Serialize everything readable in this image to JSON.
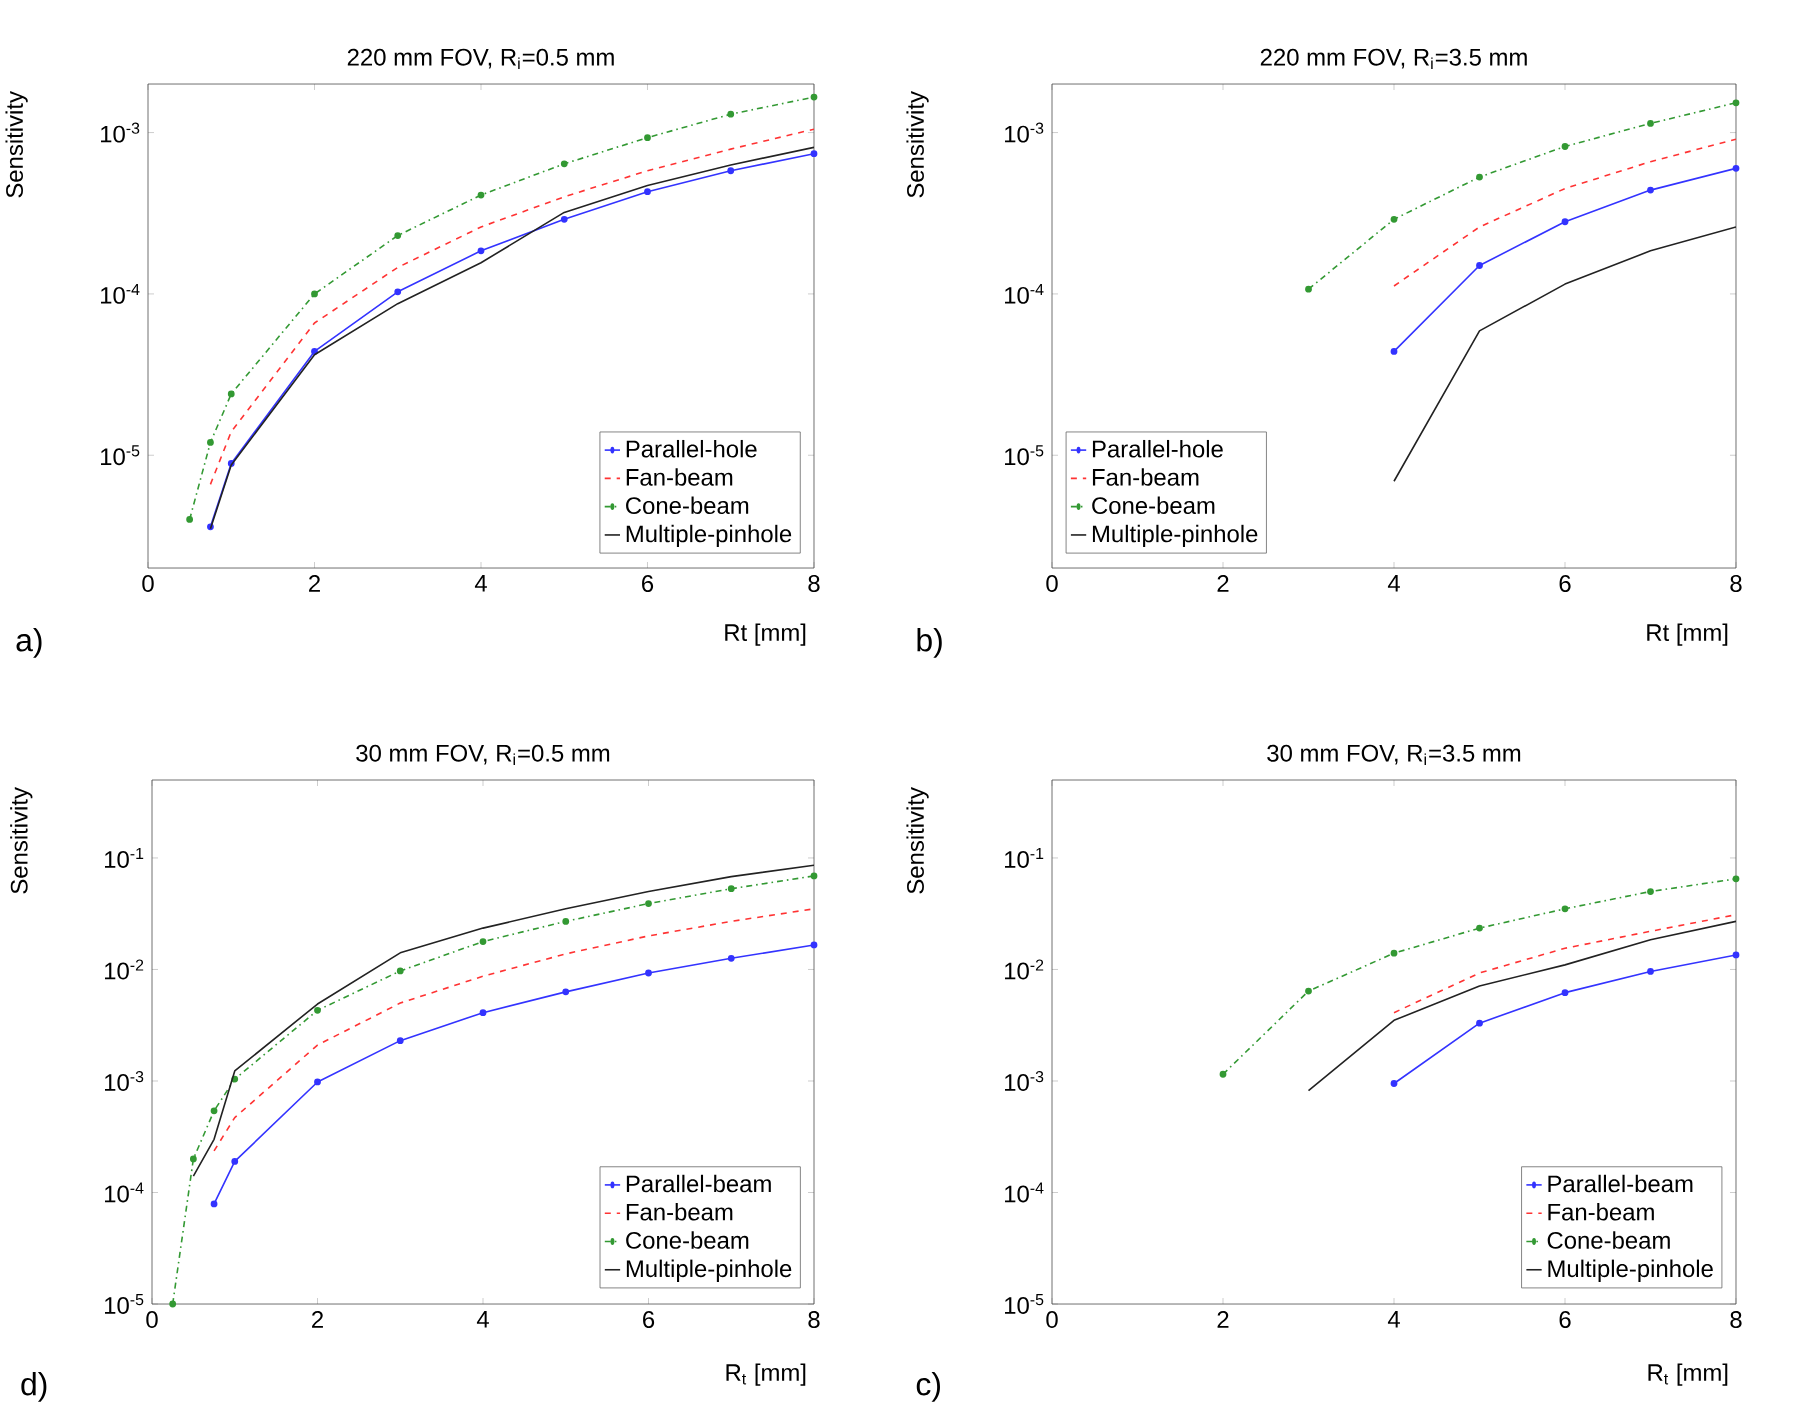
{
  "chart_data": [
    {
      "type": "line",
      "title": "220 mm FOV, R$_{i}$=0.5 mm",
      "xlabel": "Rt [mm]",
      "ylabel": "Sensitivity",
      "log": "y",
      "legend": "bottom right",
      "annotations": [
        "a)"
      ],
      "xlim": [
        0,
        8
      ],
      "xticks": [
        0,
        2,
        4,
        6,
        8
      ],
      "ylim": [
        2e-06,
        0.002
      ],
      "yticks": [
        {
          "value": 1e-05,
          "label": "10$^{-5}$"
        },
        {
          "value": 0.0001,
          "label": "10$^{-4}$"
        },
        {
          "value": 0.001,
          "label": "10$^{-3}$"
        }
      ],
      "series": [
        {
          "name": "Parallel-hole",
          "color": "#3333ff",
          "marker": "circle",
          "line_style": "solid",
          "x": [
            0.75,
            1,
            2,
            3,
            4,
            5,
            6,
            7,
            8
          ],
          "values": [
            3.6e-06,
            8.9e-06,
            4.4e-05,
            0.000103,
            0.000185,
            0.00029,
            0.00043,
            0.00058,
            0.00074
          ]
        },
        {
          "name": "Fan-beam",
          "color": "#ff3333",
          "marker": "none",
          "line_style": "dashed",
          "x": [
            0.75,
            1,
            2,
            3,
            4,
            5,
            6,
            7,
            8
          ],
          "values": [
            6.6e-06,
            1.4e-05,
            6.6e-05,
            0.000146,
            0.00026,
            0.0004,
            0.00058,
            0.00079,
            0.00105
          ]
        },
        {
          "name": "Cone-beam",
          "color": "#339933",
          "marker": "circle",
          "line_style": "dashdot",
          "x": [
            0.5,
            0.75,
            1,
            2,
            3,
            4,
            5,
            6,
            7,
            8
          ],
          "values": [
            4e-06,
            1.2e-05,
            2.4e-05,
            0.0001,
            0.00023,
            0.00041,
            0.00064,
            0.00093,
            0.0013,
            0.00166
          ]
        },
        {
          "name": "Multiple-pinhole",
          "color": "#222222",
          "marker": "none",
          "line_style": "solid",
          "x": [
            0.75,
            1,
            2,
            3,
            4,
            5,
            6,
            7,
            8
          ],
          "values": [
            3.5e-06,
            8.7e-06,
            4.2e-05,
            8.7e-05,
            0.000156,
            0.00032,
            0.00047,
            0.00063,
            0.00081
          ]
        }
      ]
    },
    {
      "type": "line",
      "title": "220 mm FOV, R$_{i}$=3.5 mm",
      "xlabel": "Rt [mm]",
      "ylabel": "Sensitivity",
      "log": "y",
      "legend": "bottom left",
      "annotations": [
        "b)"
      ],
      "xlim": [
        0,
        8
      ],
      "xticks": [
        0,
        2,
        4,
        6,
        8
      ],
      "ylim": [
        2e-06,
        0.002
      ],
      "yticks": [
        {
          "value": 1e-05,
          "label": "10$^{-5}$"
        },
        {
          "value": 0.0001,
          "label": "10$^{-4}$"
        },
        {
          "value": 0.001,
          "label": "10$^{-3}$"
        }
      ],
      "series": [
        {
          "name": "Parallel-hole",
          "color": "#3333ff",
          "marker": "circle",
          "line_style": "solid",
          "x": [
            4,
            5,
            6,
            7,
            8
          ],
          "values": [
            4.4e-05,
            0.00015,
            0.00028,
            0.00044,
            0.0006
          ]
        },
        {
          "name": "Fan-beam",
          "color": "#ff3333",
          "marker": "none",
          "line_style": "dashed",
          "x": [
            4,
            5,
            6,
            7,
            8
          ],
          "values": [
            0.000112,
            0.00026,
            0.00045,
            0.00066,
            0.00091
          ]
        },
        {
          "name": "Cone-beam",
          "color": "#339933",
          "marker": "circle",
          "line_style": "dashdot",
          "x": [
            3,
            4,
            5,
            6,
            7,
            8
          ],
          "values": [
            0.000107,
            0.00029,
            0.00053,
            0.00082,
            0.00114,
            0.00153
          ]
        },
        {
          "name": "Multiple-pinhole",
          "color": "#222222",
          "marker": "none",
          "line_style": "solid",
          "x": [
            4,
            5,
            6,
            7,
            8
          ],
          "values": [
            6.9e-06,
            5.9e-05,
            0.000115,
            0.000185,
            0.00026
          ]
        }
      ]
    },
    {
      "type": "line",
      "title": "30 mm FOV, R$_{i}$=0.5 mm",
      "xlabel": "R$_{t}$ [mm]",
      "ylabel": "Sensitivity",
      "log": "y",
      "legend": "bottom right",
      "annotations": [
        "d)"
      ],
      "xlim": [
        0,
        8
      ],
      "xticks": [
        0,
        2,
        4,
        6,
        8
      ],
      "ylim": [
        1e-05,
        0.5
      ],
      "yticks": [
        {
          "value": 1e-05,
          "label": "10$^{-5}$"
        },
        {
          "value": 0.0001,
          "label": "10$^{-4}$"
        },
        {
          "value": 0.001,
          "label": "10$^{-3}$"
        },
        {
          "value": 0.01,
          "label": "10$^{-2}$"
        },
        {
          "value": 0.1,
          "label": "10$^{-1}$"
        }
      ],
      "series": [
        {
          "name": "Parallel-beam",
          "color": "#3333ff",
          "marker": "circle",
          "line_style": "solid",
          "x": [
            0.75,
            1,
            2,
            3,
            4,
            5,
            6,
            7,
            8
          ],
          "values": [
            7.9e-05,
            0.00019,
            0.00098,
            0.0023,
            0.0041,
            0.0063,
            0.0093,
            0.0126,
            0.0166
          ]
        },
        {
          "name": "Fan-beam",
          "color": "#ff3333",
          "marker": "none",
          "line_style": "dashed",
          "x": [
            0.75,
            1,
            2,
            3,
            4,
            5,
            6,
            7,
            8
          ],
          "values": [
            0.000236,
            0.00047,
            0.0021,
            0.005,
            0.0087,
            0.0138,
            0.02,
            0.027,
            0.035
          ]
        },
        {
          "name": "Cone-beam",
          "color": "#339933",
          "marker": "circle",
          "line_style": "dashdot",
          "x": [
            0.25,
            0.5,
            0.75,
            1,
            2,
            3,
            4,
            5,
            6,
            7,
            8
          ],
          "values": [
            1e-05,
            0.0002,
            0.00054,
            0.00104,
            0.0043,
            0.0097,
            0.0178,
            0.027,
            0.039,
            0.053,
            0.069
          ]
        },
        {
          "name": "Multiple-pinhole",
          "color": "#222222",
          "marker": "none",
          "line_style": "solid",
          "x": [
            0.5,
            0.75,
            1,
            2,
            3,
            4,
            5,
            6,
            7,
            8
          ],
          "values": [
            0.00014,
            0.0003,
            0.00123,
            0.0049,
            0.0141,
            0.0235,
            0.035,
            0.05,
            0.068,
            0.086
          ]
        }
      ]
    },
    {
      "type": "line",
      "title": "30 mm FOV, R$_{i}$=3.5 mm",
      "xlabel": "R$_{t}$ [mm]",
      "ylabel": "Sensitivity",
      "log": "y",
      "legend": "bottom right",
      "annotations": [
        "c)"
      ],
      "xlim": [
        0,
        8
      ],
      "xticks": [
        0,
        2,
        4,
        6,
        8
      ],
      "ylim": [
        1e-05,
        0.5
      ],
      "yticks": [
        {
          "value": 1e-05,
          "label": "10$^{-5}$"
        },
        {
          "value": 0.0001,
          "label": "10$^{-4}$"
        },
        {
          "value": 0.001,
          "label": "10$^{-3}$"
        },
        {
          "value": 0.01,
          "label": "10$^{-2}$"
        },
        {
          "value": 0.1,
          "label": "10$^{-1}$"
        }
      ],
      "series": [
        {
          "name": "Parallel-beam",
          "color": "#3333ff",
          "marker": "circle",
          "line_style": "solid",
          "x": [
            4,
            5,
            6,
            7,
            8
          ],
          "values": [
            0.00095,
            0.0033,
            0.0062,
            0.0096,
            0.0135
          ]
        },
        {
          "name": "Fan-beam",
          "color": "#ff3333",
          "marker": "none",
          "line_style": "dashed",
          "x": [
            4,
            5,
            6,
            7,
            8
          ],
          "values": [
            0.0041,
            0.0093,
            0.0155,
            0.022,
            0.031
          ]
        },
        {
          "name": "Cone-beam",
          "color": "#339933",
          "marker": "circle",
          "line_style": "dashdot",
          "x": [
            2,
            3,
            4,
            5,
            6,
            7,
            8
          ],
          "values": [
            0.00115,
            0.0064,
            0.014,
            0.0235,
            0.035,
            0.05,
            0.065
          ]
        },
        {
          "name": "Multiple-pinhole",
          "color": "#222222",
          "marker": "none",
          "line_style": "solid",
          "x": [
            3,
            4,
            5,
            6,
            7,
            8
          ],
          "values": [
            0.00082,
            0.0035,
            0.0071,
            0.011,
            0.0185,
            0.027
          ]
        }
      ]
    }
  ]
}
